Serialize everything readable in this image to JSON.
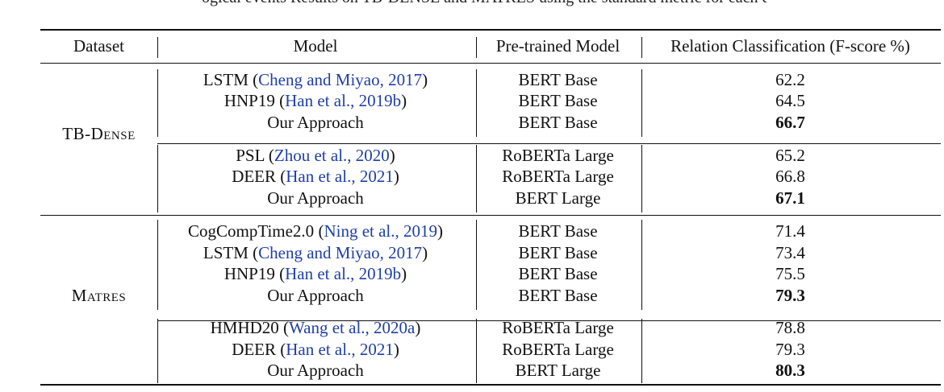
{
  "caption_tail": "ogical events Results on TB-DENSE and MATRES using the standard metric for each dataset",
  "headers": {
    "dataset": "Dataset",
    "model": "Model",
    "pretrained": "Pre-trained Model",
    "rc": "Relation Classification (F-score %)"
  },
  "datasets": {
    "tbdense": "TB-Dense",
    "matres": "Matres"
  },
  "rows": [
    {
      "model": "LSTM",
      "cite": "Cheng and Miyao, 2017",
      "pretrained": "BERT Base",
      "score": "62.2",
      "best": false
    },
    {
      "model": "HNP19",
      "cite": "Han et al., 2019b",
      "pretrained": "BERT Base",
      "score": "64.5",
      "best": false
    },
    {
      "model": "Our Approach",
      "cite": "",
      "pretrained": "BERT Base",
      "score": "66.7",
      "best": true
    },
    {
      "model": "PSL",
      "cite": "Zhou et al., 2020",
      "pretrained": "RoBERTa Large",
      "score": "65.2",
      "best": false
    },
    {
      "model": "DEER",
      "cite": "Han et al., 2021",
      "pretrained": "RoBERTa Large",
      "score": "66.8",
      "best": false
    },
    {
      "model": "Our Approach",
      "cite": "",
      "pretrained": "BERT Large",
      "score": "67.1",
      "best": true
    },
    {
      "model": "CogCompTime2.0",
      "cite": "Ning et al., 2019",
      "pretrained": "BERT Base",
      "score": "71.4",
      "best": false
    },
    {
      "model": "LSTM",
      "cite": "Cheng and Miyao, 2017",
      "pretrained": "BERT Base",
      "score": "73.4",
      "best": false
    },
    {
      "model": "HNP19",
      "cite": "Han et al., 2019b",
      "pretrained": "BERT Base",
      "score": "75.5",
      "best": false
    },
    {
      "model": "Our Approach",
      "cite": "",
      "pretrained": "BERT Base",
      "score": "79.3",
      "best": true
    },
    {
      "model": "HMHD20",
      "cite": "Wang et al., 2020a",
      "pretrained": "RoBERTa Large",
      "score": "78.8",
      "best": false
    },
    {
      "model": "DEER",
      "cite": "Han et al., 2021",
      "pretrained": "RoBERTa Large",
      "score": "79.3",
      "best": false
    },
    {
      "model": "Our Approach",
      "cite": "",
      "pretrained": "BERT Large",
      "score": "80.3",
      "best": true
    }
  ],
  "colors": {
    "citation": "#1f3fa8",
    "text": "#111111"
  }
}
